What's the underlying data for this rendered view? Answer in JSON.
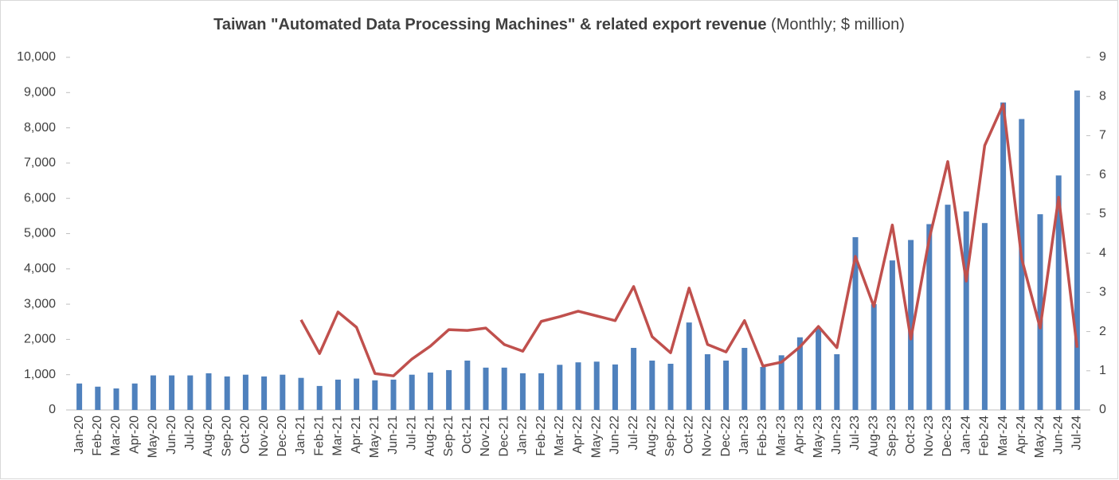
{
  "chart_data": {
    "type": "bar_line",
    "title": "Taiwan \"Automated Data Processing Machines\" & related export revenue",
    "subtitle": "(Monthly; $ million)",
    "categories": [
      "Jan-20",
      "Feb-20",
      "Mar-20",
      "Apr-20",
      "May-20",
      "Jun-20",
      "Jul-20",
      "Aug-20",
      "Sep-20",
      "Oct-20",
      "Nov-20",
      "Dec-20",
      "Jan-21",
      "Feb-21",
      "Mar-21",
      "Apr-21",
      "May-21",
      "Jun-21",
      "Jul-21",
      "Aug-21",
      "Sep-21",
      "Oct-21",
      "Nov-21",
      "Dec-21",
      "Jan-22",
      "Feb-22",
      "Mar-22",
      "Apr-22",
      "May-22",
      "Jun-22",
      "Jul-22",
      "Aug-22",
      "Sep-22",
      "Oct-22",
      "Nov-22",
      "Dec-22",
      "Jan-23",
      "Feb-23",
      "Mar-23",
      "Apr-23",
      "May-23",
      "Jun-23",
      "Jul-23",
      "Aug-23",
      "Sep-23",
      "Oct-23",
      "Nov-23",
      "Dec-23",
      "Jan-24",
      "Feb-24",
      "Mar-24",
      "Apr-24",
      "May-24",
      "Jun-24",
      "Jul-24"
    ],
    "series": [
      {
        "type": "bar",
        "color": "#4f81bd",
        "values": [
          750,
          660,
          610,
          750,
          980,
          980,
          980,
          1040,
          950,
          1000,
          950,
          1000,
          910,
          680,
          860,
          890,
          840,
          860,
          1000,
          1060,
          1130,
          1400,
          1200,
          1200,
          1040,
          1040,
          1280,
          1350,
          1370,
          1290,
          1760,
          1400,
          1310,
          2480,
          1580,
          1400,
          1760,
          1220,
          1550,
          2060,
          2300,
          1580,
          4900,
          3000,
          4240,
          4820,
          5270,
          5820,
          5630,
          5300,
          8720,
          8250,
          5550,
          6650,
          9060
        ]
      },
      {
        "type": "line",
        "axis": "y2",
        "color": "#c0504d",
        "values": [
          null,
          null,
          null,
          null,
          null,
          null,
          null,
          null,
          null,
          null,
          null,
          null,
          2.3,
          1.44,
          2.5,
          2.11,
          0.93,
          0.87,
          1.3,
          1.63,
          2.05,
          2.03,
          2.09,
          1.67,
          1.5,
          2.26,
          2.38,
          2.52,
          2.4,
          2.28,
          3.15,
          1.87,
          1.46,
          3.11,
          1.67,
          1.48,
          2.28,
          1.12,
          1.22,
          1.61,
          2.13,
          1.59,
          3.92,
          2.64,
          4.72,
          1.81,
          4.37,
          6.34,
          3.29,
          6.75,
          7.8,
          3.86,
          2.09,
          5.43,
          1.59
        ]
      }
    ],
    "ylim": [
      0,
      10000
    ],
    "yticks": [
      0,
      {
        "value": 1000,
        "label": "1,000"
      },
      {
        "value": 2000,
        "label": "2,000"
      },
      {
        "value": 3000,
        "label": "3,000"
      },
      {
        "value": 4000,
        "label": "4,000"
      },
      {
        "value": 5000,
        "label": "5,000"
      },
      {
        "value": 6000,
        "label": "6,000"
      },
      {
        "value": 7000,
        "label": "7,000"
      },
      {
        "value": 8000,
        "label": "8,000"
      },
      {
        "value": 9000,
        "label": "9,000"
      },
      {
        "value": 10000,
        "label": "10,000"
      }
    ],
    "y2lim": [
      0,
      9
    ],
    "y2ticks": [
      0,
      1,
      2,
      3,
      4,
      5,
      6,
      7,
      8,
      9
    ]
  }
}
